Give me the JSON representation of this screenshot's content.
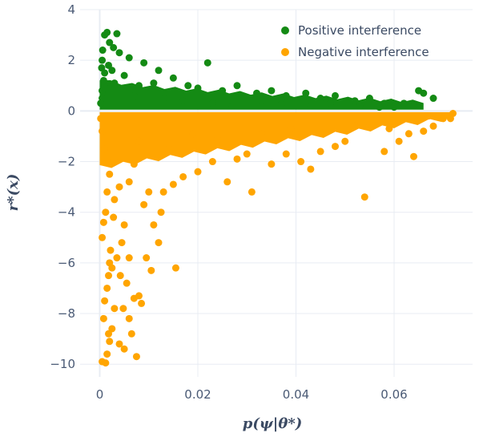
{
  "chart_data": {
    "type": "scatter",
    "xlabel": "p(ψ|θ*)",
    "ylabel": "r*(x)",
    "xlim": [
      -0.004,
      0.076
    ],
    "ylim": [
      -10.5,
      4.0
    ],
    "x_ticks": [
      0,
      0.02,
      0.04,
      0.06
    ],
    "x_tick_labels": [
      "0",
      "0.02",
      "0.04",
      "0.06"
    ],
    "y_ticks": [
      4,
      2,
      0,
      -2,
      -4,
      -6,
      -8,
      -10
    ],
    "y_tick_labels": [
      "4",
      "2",
      "0",
      "−2",
      "−4",
      "−6",
      "−8",
      "−10"
    ],
    "grid": true,
    "legend_position": "top-right",
    "series": [
      {
        "name": "Positive interference",
        "color": "#148a14",
        "points": [
          [
            0.0002,
            0.3
          ],
          [
            0.0005,
            0.8
          ],
          [
            0.0008,
            1.2
          ],
          [
            0.001,
            3.0
          ],
          [
            0.0015,
            3.1
          ],
          [
            0.0035,
            3.05
          ],
          [
            0.002,
            2.7
          ],
          [
            0.0028,
            2.5
          ],
          [
            0.0005,
            2.0
          ],
          [
            0.004,
            2.3
          ],
          [
            0.006,
            2.1
          ],
          [
            0.009,
            1.9
          ],
          [
            0.012,
            1.6
          ],
          [
            0.015,
            1.3
          ],
          [
            0.022,
            1.9
          ],
          [
            0.0025,
            1.6
          ],
          [
            0.001,
            1.5
          ],
          [
            0.003,
            1.1
          ],
          [
            0.005,
            1.4
          ],
          [
            0.008,
            1.0
          ],
          [
            0.011,
            1.1
          ],
          [
            0.018,
            1.0
          ],
          [
            0.02,
            0.9
          ],
          [
            0.025,
            0.8
          ],
          [
            0.028,
            1.0
          ],
          [
            0.032,
            0.7
          ],
          [
            0.035,
            0.8
          ],
          [
            0.038,
            0.6
          ],
          [
            0.042,
            0.7
          ],
          [
            0.045,
            0.5
          ],
          [
            0.048,
            0.6
          ],
          [
            0.052,
            0.4
          ],
          [
            0.055,
            0.5
          ],
          [
            0.058,
            0.3
          ],
          [
            0.062,
            0.3
          ],
          [
            0.065,
            0.8
          ],
          [
            0.066,
            0.7
          ],
          [
            0.068,
            0.5
          ],
          [
            0.064,
            0.2
          ],
          [
            0.06,
            0.15
          ],
          [
            0.007,
            0.6
          ],
          [
            0.013,
            0.5
          ],
          [
            0.017,
            0.4
          ],
          [
            0.023,
            0.3
          ],
          [
            0.027,
            0.2
          ],
          [
            0.033,
            0.4
          ],
          [
            0.037,
            0.25
          ],
          [
            0.043,
            0.2
          ],
          [
            0.047,
            0.3
          ],
          [
            0.053,
            0.2
          ],
          [
            0.057,
            0.15
          ],
          [
            0.0005,
            0.5
          ],
          [
            0.0012,
            0.9
          ],
          [
            0.0018,
            1.8
          ],
          [
            0.0006,
            2.4
          ],
          [
            0.0004,
            1.7
          ]
        ]
      },
      {
        "name": "Negative interference",
        "color": "#ffa500",
        "points": [
          [
            0.0002,
            -0.3
          ],
          [
            0.0005,
            -0.8
          ],
          [
            0.001,
            -1.5
          ],
          [
            0.0005,
            -9.9
          ],
          [
            0.0012,
            -9.95
          ],
          [
            0.0015,
            -9.6
          ],
          [
            0.002,
            -9.1
          ],
          [
            0.0025,
            -8.6
          ],
          [
            0.0008,
            -8.2
          ],
          [
            0.001,
            -7.5
          ],
          [
            0.0015,
            -7.0
          ],
          [
            0.0018,
            -6.5
          ],
          [
            0.002,
            -6.0
          ],
          [
            0.0022,
            -5.5
          ],
          [
            0.0005,
            -5.0
          ],
          [
            0.0008,
            -4.4
          ],
          [
            0.0012,
            -4.0
          ],
          [
            0.003,
            -3.5
          ],
          [
            0.004,
            -3.0
          ],
          [
            0.005,
            -4.5
          ],
          [
            0.0045,
            -5.2
          ],
          [
            0.006,
            -5.8
          ],
          [
            0.0055,
            -6.8
          ],
          [
            0.007,
            -7.4
          ],
          [
            0.008,
            -7.3
          ],
          [
            0.0085,
            -7.6
          ],
          [
            0.0065,
            -8.8
          ],
          [
            0.0075,
            -9.7
          ],
          [
            0.006,
            -8.2
          ],
          [
            0.005,
            -9.4
          ],
          [
            0.004,
            -9.2
          ],
          [
            0.003,
            -7.8
          ],
          [
            0.0095,
            -5.8
          ],
          [
            0.0105,
            -6.3
          ],
          [
            0.0155,
            -6.2
          ],
          [
            0.012,
            -5.2
          ],
          [
            0.011,
            -4.5
          ],
          [
            0.0125,
            -4.0
          ],
          [
            0.009,
            -3.7
          ],
          [
            0.01,
            -3.2
          ],
          [
            0.013,
            -3.2
          ],
          [
            0.015,
            -2.9
          ],
          [
            0.017,
            -2.6
          ],
          [
            0.02,
            -2.4
          ],
          [
            0.023,
            -2.0
          ],
          [
            0.026,
            -2.8
          ],
          [
            0.028,
            -1.9
          ],
          [
            0.031,
            -3.2
          ],
          [
            0.03,
            -1.7
          ],
          [
            0.035,
            -2.1
          ],
          [
            0.038,
            -1.7
          ],
          [
            0.041,
            -2.0
          ],
          [
            0.043,
            -2.3
          ],
          [
            0.045,
            -1.6
          ],
          [
            0.048,
            -1.4
          ],
          [
            0.05,
            -1.2
          ],
          [
            0.054,
            -3.4
          ],
          [
            0.058,
            -1.6
          ],
          [
            0.061,
            -1.2
          ],
          [
            0.064,
            -1.8
          ],
          [
            0.066,
            -0.8
          ],
          [
            0.068,
            -0.6
          ],
          [
            0.07,
            -0.3
          ],
          [
            0.072,
            -0.1
          ],
          [
            0.0715,
            -0.3
          ],
          [
            0.067,
            -0.2
          ],
          [
            0.055,
            -0.5
          ],
          [
            0.008,
            -1.2
          ],
          [
            0.014,
            -1.5
          ],
          [
            0.019,
            -0.9
          ],
          [
            0.024,
            -1.1
          ],
          [
            0.033,
            -0.9
          ],
          [
            0.039,
            -0.7
          ],
          [
            0.046,
            -0.8
          ],
          [
            0.052,
            -0.6
          ],
          [
            0.059,
            -0.7
          ],
          [
            0.063,
            -0.9
          ],
          [
            0.002,
            -2.5
          ],
          [
            0.003,
            -2.0
          ],
          [
            0.006,
            -2.8
          ],
          [
            0.007,
            -2.1
          ],
          [
            0.0015,
            -3.2
          ],
          [
            0.0028,
            -4.2
          ],
          [
            0.0035,
            -5.8
          ],
          [
            0.0042,
            -6.5
          ],
          [
            0.0048,
            -7.8
          ],
          [
            0.0025,
            -6.2
          ],
          [
            0.0018,
            -8.8
          ]
        ]
      }
    ],
    "dense_bands": [
      {
        "series": 0,
        "description_free": true,
        "x_start": 0.0,
        "x_end": 0.066,
        "y_top_at_start": 1.25,
        "y_top_at_end": 0.35,
        "y_bottom": 0.05
      },
      {
        "series": 1,
        "x_start": 0.0,
        "x_end": 0.072,
        "y_top": -0.05,
        "y_bottom_at_start": -2.2,
        "y_bottom_at_mid": -1.2,
        "y_bottom_at_end": -0.25
      }
    ]
  }
}
